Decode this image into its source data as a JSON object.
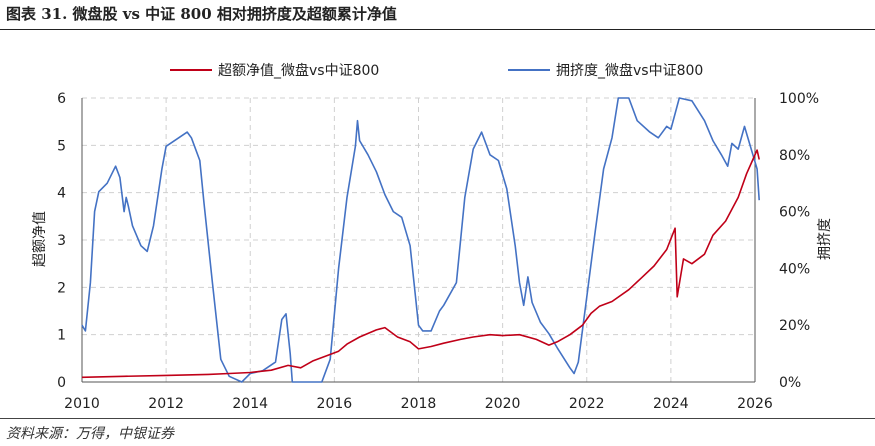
{
  "header": {
    "title": "图表 31. 微盘股 vs 中证 800 相对拥挤度及超额累计净值"
  },
  "footer": {
    "source": "资料来源：万得，中银证券"
  },
  "chart_data": {
    "type": "line",
    "grid": true,
    "legend_placement": "top-center",
    "x_ticks": [
      "2010",
      "2012",
      "2014",
      "2016",
      "2018",
      "2020",
      "2022",
      "2024",
      "2026"
    ],
    "y_left": {
      "label": "超额净值",
      "range": [
        0,
        6
      ],
      "ticks": [
        "0",
        "1",
        "2",
        "3",
        "4",
        "5",
        "6"
      ]
    },
    "y_right": {
      "label": "拥挤度",
      "range": [
        0,
        100
      ],
      "ticks": [
        "0%",
        "20%",
        "40%",
        "60%",
        "80%",
        "100%"
      ]
    },
    "colors": {
      "excess": "#c00018",
      "crowding": "#4472c4",
      "grid": "#d0d0d0"
    },
    "series": [
      {
        "name": "超额净值_微盘vs中证800",
        "axis": "left",
        "color": "#c00018",
        "points": [
          [
            2010.0,
            0.1
          ],
          [
            2011.0,
            0.12
          ],
          [
            2012.0,
            0.14
          ],
          [
            2013.0,
            0.16
          ],
          [
            2013.5,
            0.18
          ],
          [
            2014.0,
            0.2
          ],
          [
            2014.5,
            0.25
          ],
          [
            2014.9,
            0.35
          ],
          [
            2015.2,
            0.3
          ],
          [
            2015.5,
            0.45
          ],
          [
            2015.8,
            0.55
          ],
          [
            2016.1,
            0.65
          ],
          [
            2016.3,
            0.8
          ],
          [
            2016.6,
            0.95
          ],
          [
            2017.0,
            1.1
          ],
          [
            2017.2,
            1.15
          ],
          [
            2017.5,
            0.95
          ],
          [
            2017.8,
            0.85
          ],
          [
            2018.0,
            0.7
          ],
          [
            2018.3,
            0.75
          ],
          [
            2018.6,
            0.82
          ],
          [
            2019.0,
            0.9
          ],
          [
            2019.3,
            0.95
          ],
          [
            2019.7,
            1.0
          ],
          [
            2020.0,
            0.98
          ],
          [
            2020.4,
            1.0
          ],
          [
            2020.8,
            0.9
          ],
          [
            2021.1,
            0.78
          ],
          [
            2021.3,
            0.85
          ],
          [
            2021.6,
            1.0
          ],
          [
            2021.9,
            1.2
          ],
          [
            2022.1,
            1.45
          ],
          [
            2022.3,
            1.6
          ],
          [
            2022.6,
            1.7
          ],
          [
            2023.0,
            1.95
          ],
          [
            2023.3,
            2.2
          ],
          [
            2023.6,
            2.45
          ],
          [
            2023.9,
            2.8
          ],
          [
            2024.1,
            3.25
          ],
          [
            2024.15,
            1.8
          ],
          [
            2024.3,
            2.6
          ],
          [
            2024.5,
            2.5
          ],
          [
            2024.8,
            2.7
          ],
          [
            2025.0,
            3.1
          ],
          [
            2025.3,
            3.4
          ],
          [
            2025.6,
            3.9
          ],
          [
            2025.8,
            4.4
          ],
          [
            2025.95,
            4.7
          ],
          [
            2026.05,
            4.9
          ],
          [
            2026.1,
            4.7
          ]
        ]
      },
      {
        "name": "拥挤度_微盘vs中证800",
        "axis": "right",
        "color": "#4472c4",
        "points": [
          [
            2010.0,
            20
          ],
          [
            2010.08,
            18
          ],
          [
            2010.2,
            35
          ],
          [
            2010.3,
            60
          ],
          [
            2010.4,
            67
          ],
          [
            2010.6,
            70
          ],
          [
            2010.8,
            76
          ],
          [
            2010.9,
            72
          ],
          [
            2011.0,
            60
          ],
          [
            2011.05,
            65
          ],
          [
            2011.1,
            62
          ],
          [
            2011.2,
            55
          ],
          [
            2011.4,
            48
          ],
          [
            2011.55,
            46
          ],
          [
            2011.7,
            55
          ],
          [
            2011.9,
            75
          ],
          [
            2012.0,
            83
          ],
          [
            2012.3,
            86
          ],
          [
            2012.5,
            88
          ],
          [
            2012.6,
            86
          ],
          [
            2012.8,
            78
          ],
          [
            2012.9,
            63
          ],
          [
            2013.1,
            35
          ],
          [
            2013.3,
            8
          ],
          [
            2013.5,
            2
          ],
          [
            2013.8,
            0
          ],
          [
            2014.0,
            3
          ],
          [
            2014.3,
            4
          ],
          [
            2014.6,
            7
          ],
          [
            2014.75,
            22
          ],
          [
            2014.85,
            24
          ],
          [
            2014.95,
            10
          ],
          [
            2015.0,
            0
          ],
          [
            2015.3,
            0
          ],
          [
            2015.7,
            0
          ],
          [
            2015.9,
            8
          ],
          [
            2016.1,
            40
          ],
          [
            2016.3,
            65
          ],
          [
            2016.5,
            83
          ],
          [
            2016.55,
            92
          ],
          [
            2016.6,
            85
          ],
          [
            2016.8,
            80
          ],
          [
            2017.0,
            74
          ],
          [
            2017.2,
            66
          ],
          [
            2017.4,
            60
          ],
          [
            2017.6,
            58
          ],
          [
            2017.8,
            48
          ],
          [
            2018.0,
            20
          ],
          [
            2018.1,
            18
          ],
          [
            2018.3,
            18
          ],
          [
            2018.5,
            25
          ],
          [
            2018.6,
            27
          ],
          [
            2018.9,
            35
          ],
          [
            2019.1,
            65
          ],
          [
            2019.3,
            82
          ],
          [
            2019.5,
            88
          ],
          [
            2019.7,
            80
          ],
          [
            2019.9,
            78
          ],
          [
            2020.1,
            68
          ],
          [
            2020.3,
            48
          ],
          [
            2020.4,
            35
          ],
          [
            2020.5,
            27
          ],
          [
            2020.6,
            37
          ],
          [
            2020.7,
            28
          ],
          [
            2020.9,
            21
          ],
          [
            2021.1,
            17
          ],
          [
            2021.3,
            12
          ],
          [
            2021.6,
            5
          ],
          [
            2021.7,
            3
          ],
          [
            2021.8,
            7
          ],
          [
            2022.0,
            30
          ],
          [
            2022.2,
            53
          ],
          [
            2022.4,
            75
          ],
          [
            2022.6,
            86
          ],
          [
            2022.75,
            100
          ],
          [
            2023.0,
            100
          ],
          [
            2023.2,
            92
          ],
          [
            2023.5,
            88
          ],
          [
            2023.7,
            86
          ],
          [
            2023.9,
            90
          ],
          [
            2024.0,
            89
          ],
          [
            2024.2,
            100
          ],
          [
            2024.5,
            99
          ],
          [
            2024.8,
            92
          ],
          [
            2025.0,
            85
          ],
          [
            2025.2,
            80
          ],
          [
            2025.35,
            76
          ],
          [
            2025.45,
            84
          ],
          [
            2025.6,
            82
          ],
          [
            2025.75,
            90
          ],
          [
            2025.85,
            85
          ],
          [
            2025.95,
            80
          ],
          [
            2026.05,
            75
          ],
          [
            2026.1,
            64
          ]
        ]
      }
    ]
  }
}
